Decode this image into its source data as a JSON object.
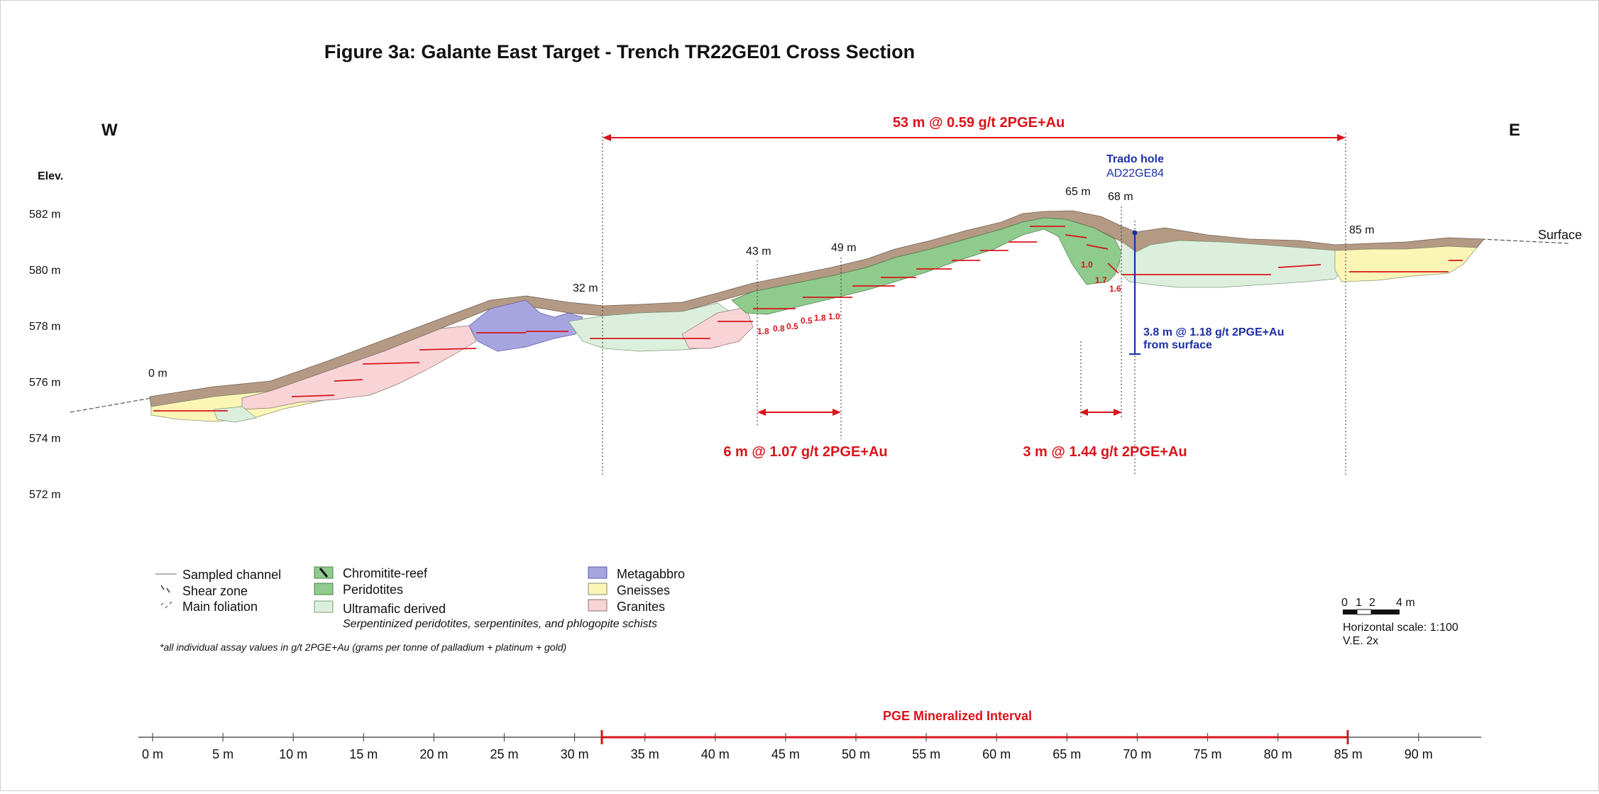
{
  "title": "Figure 3a: Galante East Target - Trench TR22GE01 Cross Section",
  "direction": {
    "west": "W",
    "east": "E"
  },
  "elevation": {
    "label": "Elev.",
    "ticks": [
      "582 m",
      "580 m",
      "578 m",
      "576 m",
      "574 m",
      "572 m"
    ]
  },
  "section": {
    "surface_label": "Surface",
    "distance_markers": [
      "0 m",
      "32 m",
      "43 m",
      "49 m",
      "65 m",
      "68 m",
      "85 m"
    ]
  },
  "intervals": {
    "main": "53 m @ 0.59 g/t 2PGE+Au",
    "left": "6 m @ 1.07 g/t 2PGE+Au",
    "right": "3 m @ 1.44 g/t 2PGE+Au"
  },
  "assays_left": [
    "1.8",
    "0.8",
    "0.5",
    "0.5",
    "1.8",
    "1.0"
  ],
  "assays_right": [
    "1.0",
    "1.7",
    "1.6"
  ],
  "drill_hole": {
    "title": "Trado hole",
    "id": "AD22GE84",
    "result_line1": "3.8 m @ 1.18 g/t 2PGE+Au",
    "result_line2": "from surface"
  },
  "legend": {
    "sampled_channel": "Sampled channel",
    "shear_zone": "Shear zone",
    "main_foliation": "Main foliation",
    "chromitite_reef": "Chromitite-reef",
    "peridotites": "Peridotites",
    "ultramafic_derived": "Ultramafic derived",
    "ultramafic_note": "Serpentinized peridotites, serpentinites, and phlogopite schists",
    "metagabbro": "Metagabbro",
    "gneisses": "Gneisses",
    "granites": "Granites"
  },
  "footnote": "*all individual assay values in g/t 2PGE+Au (grams per tonne of palladium + platinum + gold)",
  "scale": {
    "ticks": [
      "0",
      "1",
      "2",
      "4 m"
    ],
    "horizontal": "Horizontal scale: 1:100",
    "ve": "V.E. 2x"
  },
  "axis": {
    "pge_label": "PGE Mineralized Interval",
    "ticks": [
      "0 m",
      "5 m",
      "10 m",
      "15 m",
      "20 m",
      "25 m",
      "30 m",
      "35 m",
      "40 m",
      "45 m",
      "50 m",
      "55 m",
      "60 m",
      "65 m",
      "70 m",
      "75 m",
      "80 m",
      "85 m",
      "90 m"
    ]
  },
  "colors": {
    "red": "#d9141b",
    "blue": "#1b2fa6",
    "soil": "#b49a84",
    "peridotite": "#8fcb8c",
    "ultramafic": "#dcefdc",
    "metagabbro": "#a7a5e0",
    "gneiss": "#fbf6b6",
    "granite": "#f8d4d7"
  }
}
